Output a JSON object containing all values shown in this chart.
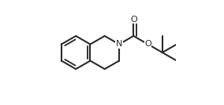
{
  "bg_color": "#ffffff",
  "line_color": "#2a2a2a",
  "lw": 1.5,
  "figsize": [
    2.84,
    1.34
  ],
  "dpi": 100,
  "xlim": [
    -0.05,
    1.3
  ],
  "ylim": [
    -0.05,
    1.05
  ]
}
